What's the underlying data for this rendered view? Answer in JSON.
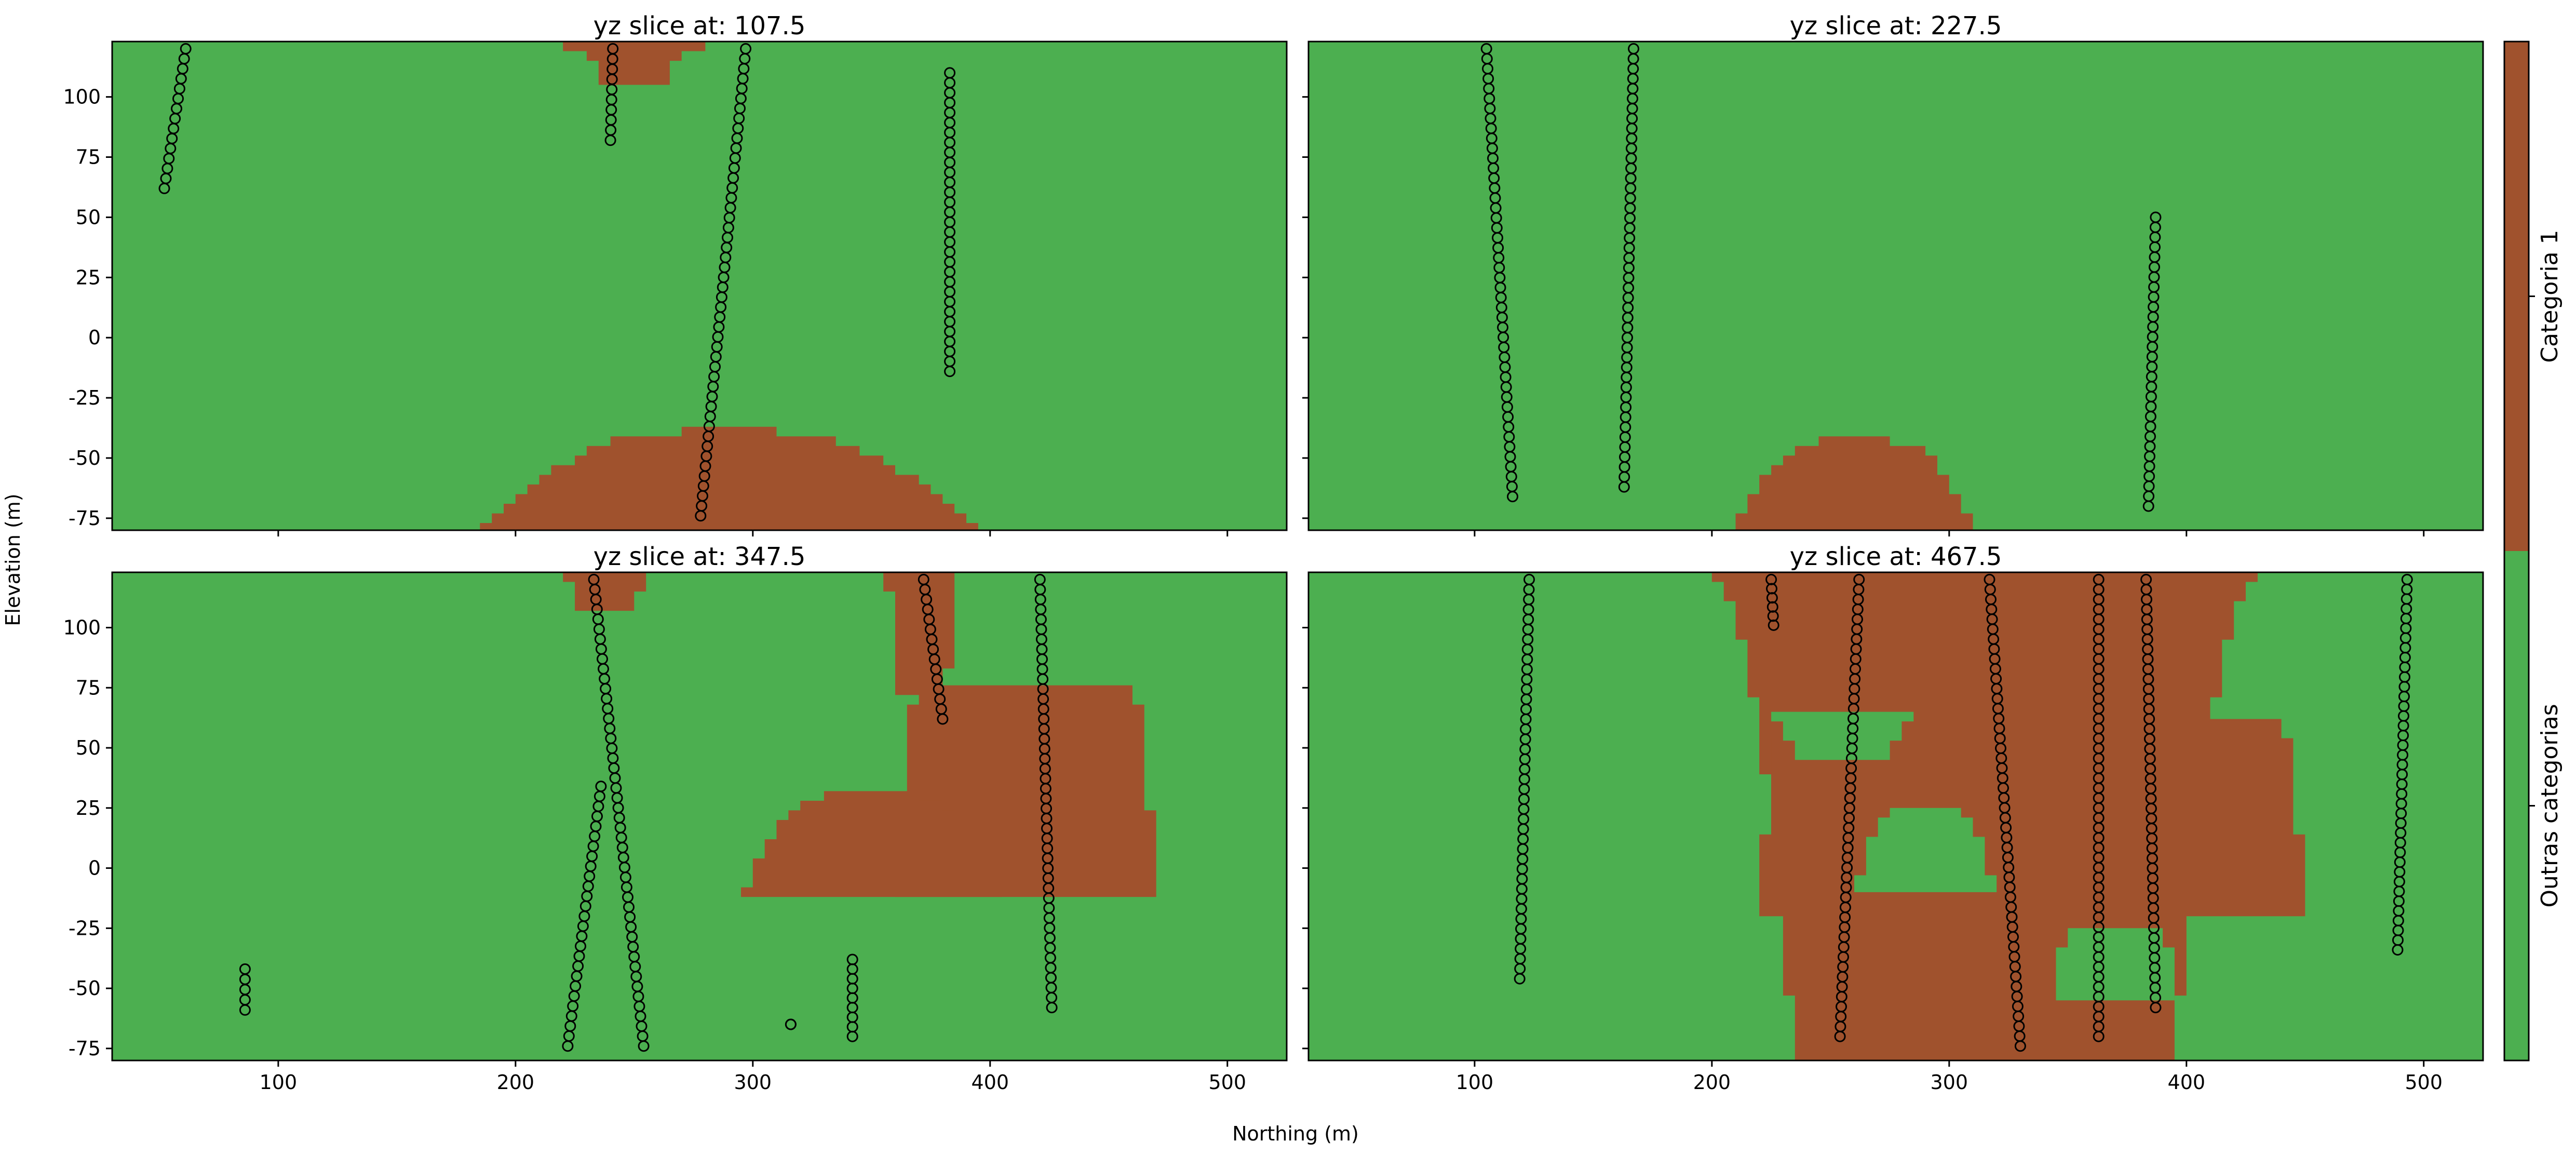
{
  "colors": {
    "category_1": "#a0522d",
    "other": "#4caf50",
    "sample_marker": "#000000",
    "sample_marker_red": "#e53935"
  },
  "figure": {
    "xlabel": "Northing (m)",
    "ylabel": "Elevation (m)"
  },
  "colorbar": {
    "labels": [
      "Categoria 1",
      "Outras categorias"
    ],
    "colors": [
      "#a0522d",
      "#4caf50"
    ]
  },
  "chart_data": [
    {
      "type": "heatmap",
      "title": "yz slice at: 107.5",
      "xlim": [
        30,
        525
      ],
      "ylim": [
        -80,
        123
      ],
      "xticks": [
        100,
        200,
        300,
        400,
        500
      ],
      "yticks": [
        -75,
        -50,
        -25,
        0,
        25,
        50,
        75,
        100
      ],
      "category_bodies": [
        {
          "category": "Categoria 1",
          "y_top": -37,
          "y_bottom": -80,
          "center": 289,
          "width_top": 40,
          "width_bottom": 214
        },
        {
          "category": "Categoria 1",
          "y_top": 123,
          "y_bottom": 105,
          "center": 250,
          "width_top": 56,
          "width_bottom": 24
        }
      ],
      "drillholes": [
        {
          "x_top": 61,
          "z_top": 120,
          "x_bottom": 52,
          "z_bottom": 62
        },
        {
          "x_top": 241,
          "z_top": 120,
          "x_bottom": 240,
          "z_bottom": 82
        },
        {
          "x_top": 297,
          "z_top": 120,
          "x_bottom": 278,
          "z_bottom": -74
        },
        {
          "x_top": 383,
          "z_top": 110,
          "x_bottom": 383,
          "z_bottom": -14
        }
      ]
    },
    {
      "type": "heatmap",
      "title": "yz slice at: 227.5",
      "xlim": [
        30,
        525
      ],
      "ylim": [
        -80,
        123
      ],
      "xticks": [
        100,
        200,
        300,
        400,
        500
      ],
      "yticks": [
        -75,
        -50,
        -25,
        0,
        25,
        50,
        75,
        100
      ],
      "category_bodies": [
        {
          "category": "Categoria 1",
          "y_top": -41,
          "y_bottom": -80,
          "center": 261,
          "width_top": 30,
          "width_bottom": 104
        }
      ],
      "drillholes": [
        {
          "x_top": 105,
          "z_top": 120,
          "x_bottom": 116,
          "z_bottom": -66
        },
        {
          "x_top": 167,
          "z_top": 120,
          "x_bottom": 163,
          "z_bottom": -62
        },
        {
          "x_top": 387,
          "z_top": 50,
          "x_bottom": 384,
          "z_bottom": -70
        }
      ]
    },
    {
      "type": "heatmap",
      "title": "yz slice at: 347.5",
      "xlim": [
        30,
        525
      ],
      "ylim": [
        -80,
        123
      ],
      "xticks": [
        100,
        200,
        300,
        400,
        500
      ],
      "yticks": [
        -75,
        -50,
        -25,
        0,
        25,
        50,
        75,
        100
      ],
      "category_bodies": [
        {
          "category": "Categoria 1",
          "y_top": 123,
          "y_bottom": 107,
          "center": 238,
          "width_top": 38,
          "width_bottom": 24
        },
        {
          "category": "Categoria 1",
          "y_top": 123,
          "y_bottom": 72,
          "center": 371,
          "width_top": 30,
          "width_bottom": 22
        },
        {
          "category": "Categoria 1",
          "y_top": 76,
          "y_bottom": -12,
          "center": 415,
          "width_top": 90,
          "width_bottom": 110
        },
        {
          "category": "Categoria 1",
          "y_top": 32,
          "y_bottom": -12,
          "center": 350,
          "width_top": 40,
          "width_bottom": 110
        }
      ],
      "drillholes": [
        {
          "x_top": 233,
          "z_top": 120,
          "x_bottom": 254,
          "z_bottom": -74
        },
        {
          "x_top": 236,
          "z_top": 34,
          "x_bottom": 222,
          "z_bottom": -74
        },
        {
          "x_top": 372,
          "z_top": 120,
          "x_bottom": 380,
          "z_bottom": 62
        },
        {
          "x_top": 421,
          "z_top": 120,
          "x_bottom": 426,
          "z_bottom": -58
        },
        {
          "x_top": 86,
          "z_top": -42,
          "x_bottom": 86,
          "z_bottom": -59
        },
        {
          "x_top": 342,
          "z_top": -38,
          "x_bottom": 342,
          "z_bottom": -70
        },
        {
          "x_top": 316,
          "z_top": -65,
          "x_bottom": 316,
          "z_bottom": -65
        }
      ]
    },
    {
      "type": "heatmap",
      "title": "yz slice at: 467.5",
      "xlim": [
        30,
        525
      ],
      "ylim": [
        -80,
        123
      ],
      "xticks": [
        100,
        200,
        300,
        400,
        500
      ],
      "yticks": [
        -75,
        -50,
        -25,
        0,
        25,
        50,
        75,
        100
      ],
      "category_bodies": [
        {
          "category": "Categoria 1",
          "y_top": 123,
          "y_bottom": -80,
          "center": 315,
          "width_top": 230,
          "width_bottom": 160
        },
        {
          "category": "Categoria 1",
          "y_top": 62,
          "y_bottom": -20,
          "center": 335,
          "width_top": 210,
          "width_bottom": 230
        }
      ],
      "holes_in_body": [
        {
          "category": "Outras categorias",
          "y_top": 65,
          "y_bottom": 45,
          "center": 255,
          "width_top": 60,
          "width_bottom": 40
        },
        {
          "category": "Outras categorias",
          "y_top": 25,
          "y_bottom": -10,
          "center": 290,
          "width_top": 30,
          "width_bottom": 60
        },
        {
          "category": "Outras categorias",
          "y_top": -25,
          "y_bottom": -55,
          "center": 370,
          "width_top": 40,
          "width_bottom": 50
        }
      ],
      "drillholes": [
        {
          "x_top": 123,
          "z_top": 120,
          "x_bottom": 119,
          "z_bottom": -46
        },
        {
          "x_top": 225,
          "z_top": 120,
          "x_bottom": 226,
          "z_bottom": 101
        },
        {
          "x_top": 262,
          "z_top": 120,
          "x_bottom": 254,
          "z_bottom": -70
        },
        {
          "x_top": 317,
          "z_top": 120,
          "x_bottom": 330,
          "z_bottom": -74
        },
        {
          "x_top": 363,
          "z_top": 120,
          "x_bottom": 363,
          "z_bottom": -70
        },
        {
          "x_top": 383,
          "z_top": 120,
          "x_bottom": 387,
          "z_bottom": -58
        },
        {
          "x_top": 493,
          "z_top": 120,
          "x_bottom": 489,
          "z_bottom": -34
        }
      ]
    }
  ]
}
